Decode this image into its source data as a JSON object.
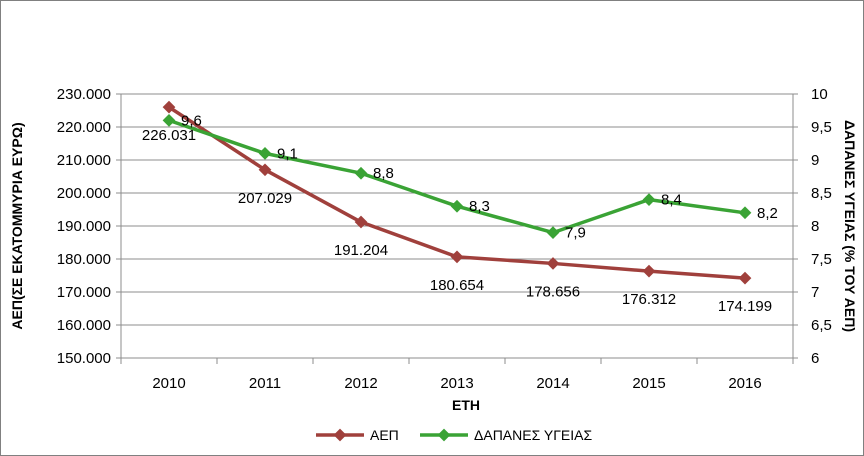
{
  "chart_data": {
    "type": "line",
    "categories": [
      "2010",
      "2011",
      "2012",
      "2013",
      "2014",
      "2015",
      "2016"
    ],
    "xlabel": "ΕΤΗ",
    "ylabel_left": "ΑΕΠ(ΣΕ ΕΚΑΤΟΜΜΥΡΙΑ ΕΥΡΩ)",
    "ylabel_right": "ΔΑΠΑΝΕΣ ΥΓΕΙΑΣ (% ΤΟΥ ΑΕΠ)",
    "ylim_left": [
      150000,
      230000
    ],
    "ylim_right": [
      6,
      10
    ],
    "yticks_left": [
      "150.000",
      "160.000",
      "170.000",
      "180.000",
      "190.000",
      "200.000",
      "210.000",
      "220.000",
      "230.000"
    ],
    "yticks_right": [
      "6",
      "6,5",
      "7",
      "7,5",
      "8",
      "8,5",
      "9",
      "9,5",
      "10"
    ],
    "grid": true,
    "legend_position": "bottom",
    "series": [
      {
        "name": "ΑΕΠ",
        "axis": "left",
        "color": "#a0403c",
        "values": [
          226031,
          207029,
          191204,
          180654,
          178656,
          176312,
          174199
        ],
        "labels": [
          "226.031",
          "207.029",
          "191.204",
          "180.654",
          "178.656",
          "176.312",
          "174.199"
        ]
      },
      {
        "name": "ΔΑΠΑΝΕΣ ΥΓΕΙΑΣ",
        "axis": "right",
        "color": "#3aa335",
        "values": [
          9.6,
          9.1,
          8.8,
          8.3,
          7.9,
          8.4,
          8.2
        ],
        "labels": [
          "9,6",
          "9,1",
          "8,8",
          "8,3",
          "7,9",
          "8,4",
          "8,2"
        ]
      }
    ]
  }
}
